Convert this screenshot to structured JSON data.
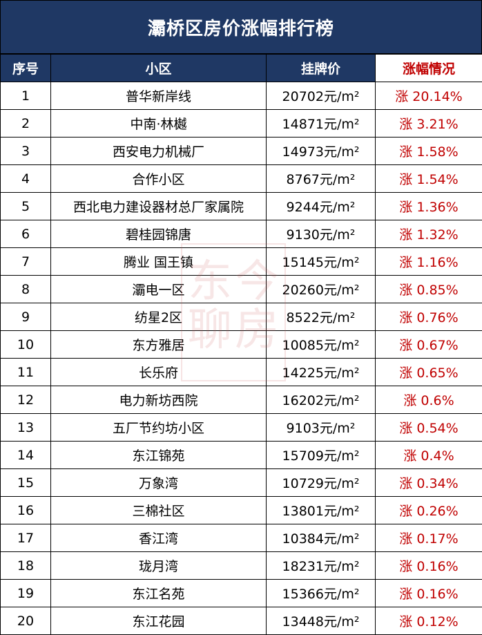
{
  "title": "灞桥区房价涨幅排行榜",
  "headers": {
    "index": "序号",
    "community": "小区",
    "price": "挂牌价",
    "change": "涨幅情况"
  },
  "rows": [
    {
      "index": "1",
      "community": "普华新岸线",
      "price": "20702元/m²",
      "change": "涨 20.14%"
    },
    {
      "index": "2",
      "community": "中南·林樾",
      "price": "14871元/m²",
      "change": "涨 3.21%"
    },
    {
      "index": "3",
      "community": "西安电力机械厂",
      "price": "14973元/m²",
      "change": "涨 1.58%"
    },
    {
      "index": "4",
      "community": "合作小区",
      "price": "8767元/m²",
      "change": "涨 1.54%"
    },
    {
      "index": "5",
      "community": "西北电力建设器材总厂家属院",
      "price": "9244元/m²",
      "change": "涨 1.36%"
    },
    {
      "index": "6",
      "community": "碧桂园锦唐",
      "price": "9130元/m²",
      "change": "涨 1.32%"
    },
    {
      "index": "7",
      "community": "腾业 国王镇",
      "price": "15145元/m²",
      "change": "涨 1.16%"
    },
    {
      "index": "8",
      "community": "灞电一区",
      "price": "20260元/m²",
      "change": "涨 0.85%"
    },
    {
      "index": "9",
      "community": "纺星2区",
      "price": "8522元/m²",
      "change": "涨 0.76%"
    },
    {
      "index": "10",
      "community": "东方雅居",
      "price": "10085元/m²",
      "change": "涨 0.67%"
    },
    {
      "index": "11",
      "community": "长乐府",
      "price": "14225元/m²",
      "change": "涨 0.65%"
    },
    {
      "index": "12",
      "community": "电力新坊西院",
      "price": "16202元/m²",
      "change": "涨 0.6%"
    },
    {
      "index": "13",
      "community": "五厂节约坊小区",
      "price": "9103元/m²",
      "change": "涨 0.54%"
    },
    {
      "index": "14",
      "community": "东江锦苑",
      "price": "15709元/m²",
      "change": "涨 0.4%"
    },
    {
      "index": "15",
      "community": "万象湾",
      "price": "10729元/m²",
      "change": "涨 0.34%"
    },
    {
      "index": "16",
      "community": "三棉社区",
      "price": "13801元/m²",
      "change": "涨 0.26%"
    },
    {
      "index": "17",
      "community": "香江湾",
      "price": "10384元/m²",
      "change": "涨 0.17%"
    },
    {
      "index": "18",
      "community": "珑月湾",
      "price": "18231元/m²",
      "change": "涨 0.16%"
    },
    {
      "index": "19",
      "community": "东江名苑",
      "price": "15366元/m²",
      "change": "涨 0.16%"
    },
    {
      "index": "20",
      "community": "东江花园",
      "price": "13448元/m²",
      "change": "涨 0.12%"
    }
  ],
  "watermark": {
    "chars": [
      "东",
      "今",
      "聊",
      "房"
    ]
  },
  "colors": {
    "header_bg": "#1f3864",
    "header_text": "#ffffff",
    "change_text": "#c00000",
    "border": "#000000"
  }
}
